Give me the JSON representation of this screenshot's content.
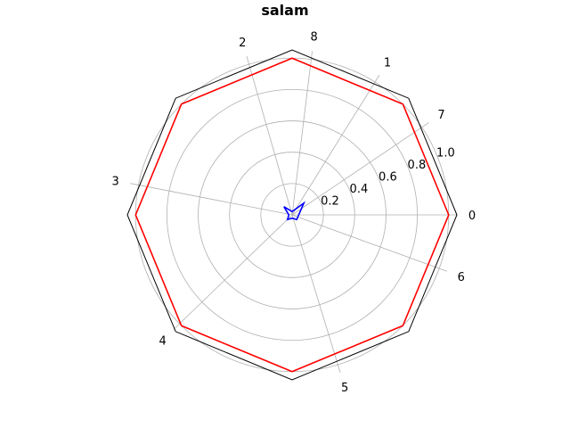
{
  "chart_data": {
    "type": "radar",
    "title": "salam",
    "frame": "octagon",
    "grid": true,
    "rlim": [
      0,
      1.0
    ],
    "r_ticks": [
      "0.2",
      "0.4",
      "0.6",
      "0.8",
      "1.0"
    ],
    "r_tick_values": [
      0.2,
      0.4,
      0.6,
      0.8,
      1.0
    ],
    "spoke_labels": [
      "0",
      "1",
      "2",
      "3",
      "4",
      "5",
      "6",
      "7",
      "8"
    ],
    "spoke_angles_deg": [
      0,
      58,
      106,
      169,
      224,
      287,
      340,
      34,
      83
    ],
    "polygon_angles_deg": [
      0,
      45,
      90,
      135,
      180,
      225,
      270,
      315
    ],
    "series": [
      {
        "color": "#ff0000",
        "values": [
          0.95,
          0.95,
          0.95,
          0.95,
          0.95,
          0.95,
          0.95,
          0.95
        ]
      },
      {
        "color": "#0000ff",
        "values": [
          0.04,
          0.1,
          0.02,
          0.07,
          0.02,
          0.04,
          0.02,
          0.04
        ]
      }
    ]
  }
}
